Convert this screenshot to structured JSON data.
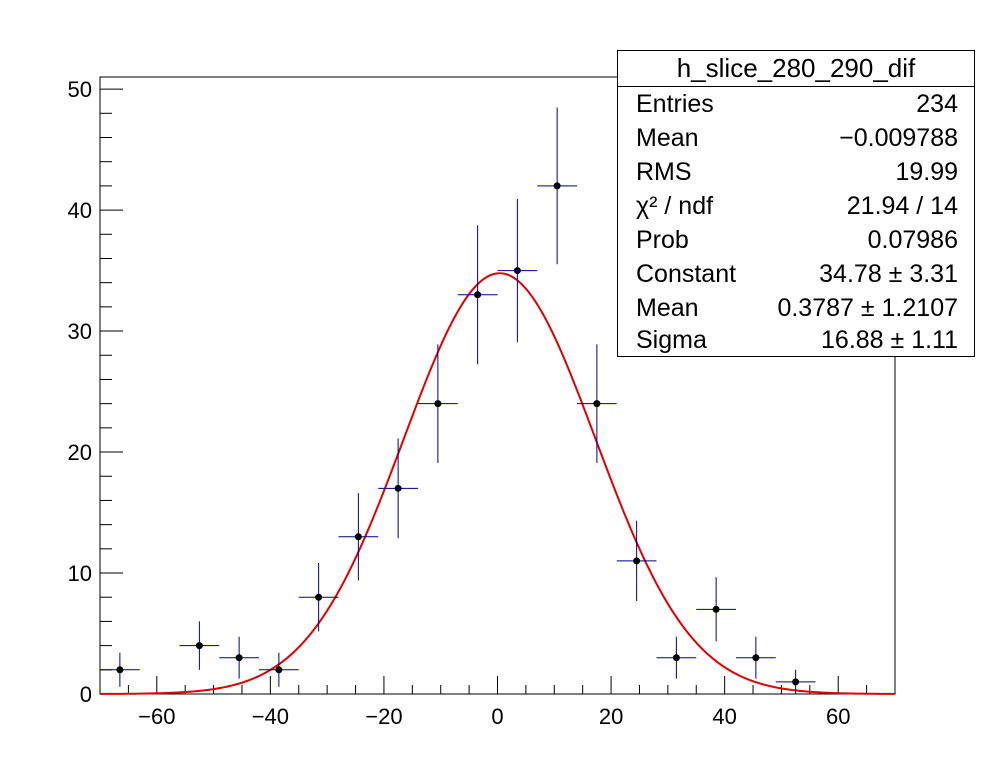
{
  "chart_data": {
    "type": "scatter",
    "title": "",
    "xlabel": "",
    "ylabel": "",
    "xlim": [
      -70,
      70
    ],
    "ylim": [
      0,
      51
    ],
    "x_ticks": [
      -60,
      -40,
      -20,
      0,
      20,
      40,
      60
    ],
    "y_ticks": [
      0,
      10,
      20,
      30,
      40,
      50
    ],
    "bin_half_width": 3.5,
    "series": [
      {
        "kind": "histogram-points",
        "color": "#000080",
        "marker_color": "#000000",
        "points": [
          {
            "x": -66.5,
            "y": 2,
            "err": 1.41
          },
          {
            "x": -52.5,
            "y": 4,
            "err": 2.0
          },
          {
            "x": -45.5,
            "y": 3,
            "err": 1.73
          },
          {
            "x": -38.5,
            "y": 2,
            "err": 1.41
          },
          {
            "x": -31.5,
            "y": 8,
            "err": 2.83
          },
          {
            "x": -24.5,
            "y": 13,
            "err": 3.61
          },
          {
            "x": -17.5,
            "y": 17,
            "err": 4.12
          },
          {
            "x": -10.5,
            "y": 24,
            "err": 4.9
          },
          {
            "x": -3.5,
            "y": 33,
            "err": 5.74
          },
          {
            "x": 3.5,
            "y": 35,
            "err": 5.92
          },
          {
            "x": 10.5,
            "y": 42,
            "err": 6.48
          },
          {
            "x": 17.5,
            "y": 24,
            "err": 4.9
          },
          {
            "x": 24.5,
            "y": 11,
            "err": 3.32
          },
          {
            "x": 31.5,
            "y": 3,
            "err": 1.73
          },
          {
            "x": 38.5,
            "y": 7,
            "err": 2.65
          },
          {
            "x": 45.5,
            "y": 3,
            "err": 1.73
          },
          {
            "x": 52.5,
            "y": 1,
            "err": 1.0
          }
        ]
      },
      {
        "kind": "gaussian-fit",
        "color": "#e00000",
        "constant": 34.78,
        "mean": 0.3787,
        "sigma": 16.88,
        "range": [
          -70,
          70
        ]
      }
    ]
  },
  "stats": {
    "title": "h_slice_280_290_dif",
    "rows": [
      {
        "label": "Entries",
        "value": "234"
      },
      {
        "label": "Mean",
        "value": "−0.009788"
      },
      {
        "label": "RMS",
        "value": "19.99"
      },
      {
        "label": "χ² / ndf",
        "value": "21.94 / 14"
      },
      {
        "label": "Prob",
        "value": "0.07986"
      },
      {
        "label": "Constant",
        "value": "34.78 ± 3.31"
      },
      {
        "label": "Mean",
        "value": "0.3787 ± 1.2107"
      },
      {
        "label": "Sigma",
        "value": "16.88 ± 1.11"
      }
    ]
  }
}
